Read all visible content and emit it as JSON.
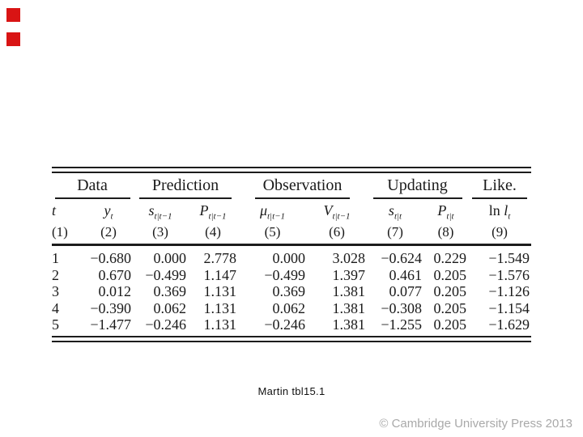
{
  "colors": {
    "bullet_red": "#d91414",
    "footer_gray": "#a9a9a9",
    "rule_black": "#1c1c1c"
  },
  "caption": "Martin tbl15.1",
  "footer": "© Cambridge University Press 2013",
  "table": {
    "groups": [
      {
        "label": "Data"
      },
      {
        "label": "Prediction"
      },
      {
        "label": "Observation"
      },
      {
        "label": "Updating"
      },
      {
        "label": "Like."
      }
    ],
    "columns": [
      {
        "pre": "",
        "main": "t",
        "sub": "",
        "num": "(1)"
      },
      {
        "pre": "",
        "main": "y",
        "sub": "t",
        "num": "(2)"
      },
      {
        "pre": "",
        "main": "s",
        "sub": "t|t−1",
        "num": "(3)"
      },
      {
        "pre": "",
        "main": "P",
        "sub": "t|t−1",
        "num": "(4)"
      },
      {
        "pre": "",
        "main": "μ",
        "sub": "t|t−1",
        "num": "(5)"
      },
      {
        "pre": "",
        "main": "V",
        "sub": "t|t−1",
        "num": "(6)"
      },
      {
        "pre": "",
        "main": "s",
        "sub": "t|t",
        "num": "(7)"
      },
      {
        "pre": "",
        "main": "P",
        "sub": "t|t",
        "num": "(8)"
      },
      {
        "pre": "ln ",
        "main": "l",
        "sub": "t",
        "num": "(9)"
      }
    ],
    "rows": [
      [
        "1",
        "−0.680",
        "0.000",
        "2.778",
        "0.000",
        "3.028",
        "−0.624",
        "0.229",
        "−1.549"
      ],
      [
        "2",
        "0.670",
        "−0.499",
        "1.147",
        "−0.499",
        "1.397",
        "0.461",
        "0.205",
        "−1.576"
      ],
      [
        "3",
        "0.012",
        "0.369",
        "1.131",
        "0.369",
        "1.381",
        "0.077",
        "0.205",
        "−1.126"
      ],
      [
        "4",
        "−0.390",
        "0.062",
        "1.131",
        "0.062",
        "1.381",
        "−0.308",
        "0.205",
        "−1.154"
      ],
      [
        "5",
        "−1.477",
        "−0.246",
        "1.131",
        "−0.246",
        "1.381",
        "−1.255",
        "0.205",
        "−1.629"
      ]
    ]
  }
}
